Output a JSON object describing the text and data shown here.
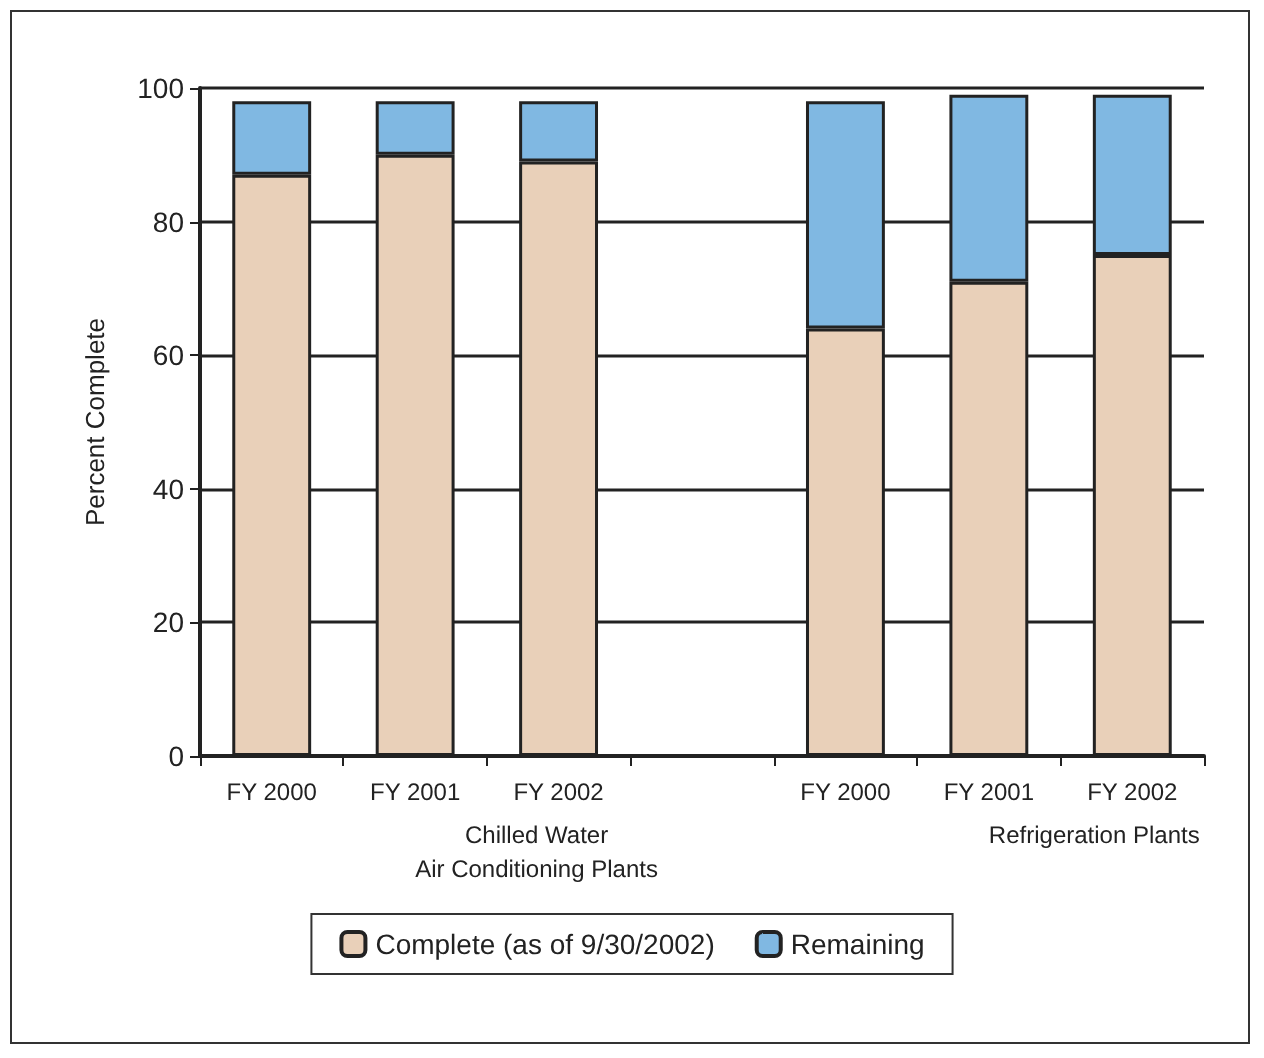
{
  "chart_data": {
    "type": "bar",
    "stacked": true,
    "ylabel": "Percent Complete",
    "categories": [
      "FY 2000",
      "FY 2001",
      "FY 2002",
      null,
      "FY 2000",
      "FY 2001",
      "FY 2002"
    ],
    "series": [
      {
        "name": "Complete (as of 9/30/2002)",
        "color": "#e9d0b9",
        "values": [
          87,
          90,
          89,
          null,
          64,
          71,
          75
        ]
      },
      {
        "name": "Remaining",
        "color": "#80b8e2",
        "values": [
          11,
          8,
          9,
          null,
          34,
          28,
          24
        ]
      }
    ],
    "ylim": [
      0,
      100
    ],
    "yticks": [
      0,
      20,
      40,
      60,
      80,
      100
    ],
    "grid": "y",
    "legend": "bottom",
    "annotations": [
      "Chilled Water\nAir Conditioning Plants",
      "Refrigeration Plants"
    ]
  }
}
